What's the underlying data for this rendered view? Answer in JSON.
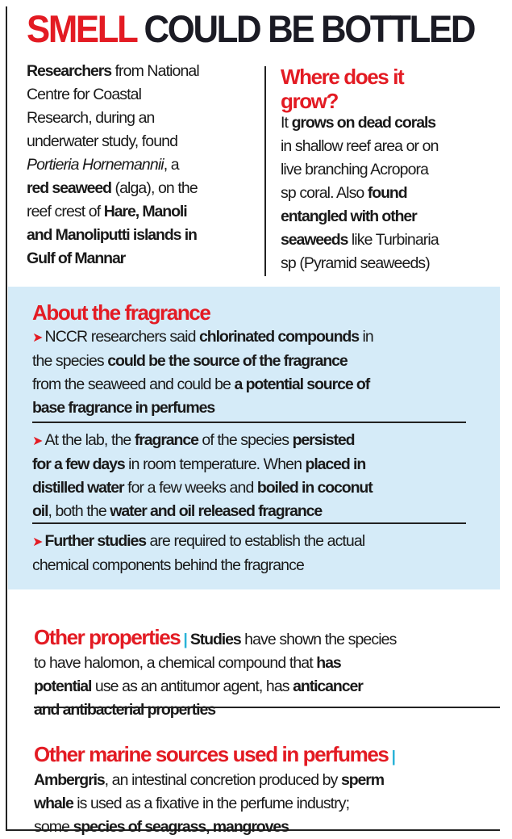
{
  "title": {
    "red": "SMELL",
    "dark": "COULD BE BOTTLED"
  },
  "intro": [
    {
      "t": "Researchers",
      "s": "b"
    },
    {
      "t": " from National\nCentre for Coastal\nResearch, during an\nunderwater study, found\n",
      "s": "n"
    },
    {
      "t": "Portieria Hornemannii",
      "s": "i"
    },
    {
      "t": ", a\n",
      "s": "n"
    },
    {
      "t": "red seaweed",
      "s": "b"
    },
    {
      "t": " (alga), on the\nreef crest of ",
      "s": "n"
    },
    {
      "t": "Hare, Manoli\nand Manoliputti islands in\nGulf of Mannar",
      "s": "b"
    }
  ],
  "where": {
    "heading": "Where does it\ngrow?",
    "body": [
      {
        "t": "It ",
        "s": "n"
      },
      {
        "t": "grows on dead corals",
        "s": "b"
      },
      {
        "t": "\nin shallow reef area or on\nlive branching Acropora\nsp coral. Also ",
        "s": "n"
      },
      {
        "t": "found\nentangled with other\nseaweeds",
        "s": "b"
      },
      {
        "t": " like Turbinaria\nsp (Pyramid seaweeds)",
        "s": "n"
      }
    ]
  },
  "fragrance": {
    "heading": "About the fragrance",
    "bullet_icon": "red-arrow",
    "bullets": [
      [
        {
          "t": "NCCR researchers said ",
          "s": "n"
        },
        {
          "t": "chlorinated compounds",
          "s": "b"
        },
        {
          "t": " in\nthe species ",
          "s": "n"
        },
        {
          "t": "could be the source of the fragrance",
          "s": "b"
        },
        {
          "t": "\nfrom the seaweed and could be ",
          "s": "n"
        },
        {
          "t": "a potential source of\nbase fragrance in perfumes",
          "s": "b"
        }
      ],
      [
        {
          "t": "At the lab, the ",
          "s": "n"
        },
        {
          "t": "fragrance",
          "s": "b"
        },
        {
          "t": " of the species ",
          "s": "n"
        },
        {
          "t": "persisted\nfor a few days",
          "s": "b"
        },
        {
          "t": " in room temperature. When ",
          "s": "n"
        },
        {
          "t": "placed in\ndistilled water",
          "s": "b"
        },
        {
          "t": " for a few weeks and ",
          "s": "n"
        },
        {
          "t": "boiled in coconut\noil",
          "s": "b"
        },
        {
          "t": ", both the ",
          "s": "n"
        },
        {
          "t": "water and oil released fragrance",
          "s": "b"
        }
      ],
      [
        {
          "t": "Further studies",
          "s": "b"
        },
        {
          "t": " are required to establish the actual\nchemical components behind the fragrance",
          "s": "n"
        }
      ]
    ]
  },
  "properties": {
    "heading": "Other properties",
    "separator": "|",
    "body": [
      {
        "t": "Studies",
        "s": "b"
      },
      {
        "t": " have shown the species\nto have halomon, a chemical compound that ",
        "s": "n"
      },
      {
        "t": "has\npotential",
        "s": "b"
      },
      {
        "t": " use as an antitumor agent, has ",
        "s": "n"
      },
      {
        "t": "anticancer\nand antibacterial properties",
        "s": "b"
      }
    ]
  },
  "marine": {
    "heading": "Other marine sources used in perfumes",
    "separator": "|",
    "body": [
      {
        "t": "Ambergris",
        "s": "b"
      },
      {
        "t": ", an intestinal concretion produced by ",
        "s": "n"
      },
      {
        "t": "sperm\nwhale",
        "s": "b"
      },
      {
        "t": " is used as a fixative in the perfume industry;\nsome ",
        "s": "n"
      },
      {
        "t": "species of seagrass, mangroves",
        "s": "b"
      }
    ]
  },
  "colors": {
    "accent_red": "#e31b23",
    "box_blue": "#d5ebf8",
    "separator_cyan": "#2ab3d8"
  }
}
